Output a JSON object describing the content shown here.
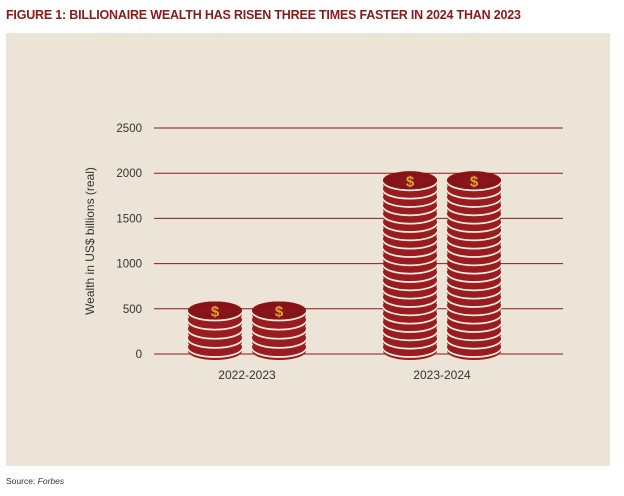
{
  "figure": {
    "title": "FIGURE 1: BILLIONAIRE WEALTH HAS RISEN THREE TIMES FASTER IN 2024 THAN 2023",
    "source_prefix": "Source: ",
    "source_name": "Forbes"
  },
  "chart_data": {
    "type": "bar",
    "title": "FIGURE 1: BILLIONAIRE WEALTH HAS RISEN THREE TIMES FASTER IN 2024 THAN 2023",
    "categories": [
      "2022-2023",
      "2023-2024"
    ],
    "values": [
      570,
      2010
    ],
    "xlabel": "",
    "ylabel": "Wealth in US$ billions (real)",
    "ylim": [
      0,
      2500
    ],
    "yticks": [
      0,
      500,
      1000,
      1500,
      2000,
      2500
    ],
    "grid": true,
    "legend": "none",
    "mark_style": "coin stacks",
    "coin_symbol": "$",
    "colors": {
      "coin": "#9b1c1f",
      "coin_top": "#8a1518",
      "coin_edge_highlight": "#f3ece0",
      "symbol": "#e0a43a",
      "gridline": "#8b1a1a",
      "panel": "#ece4d6",
      "title": "#8b1a1a"
    }
  }
}
